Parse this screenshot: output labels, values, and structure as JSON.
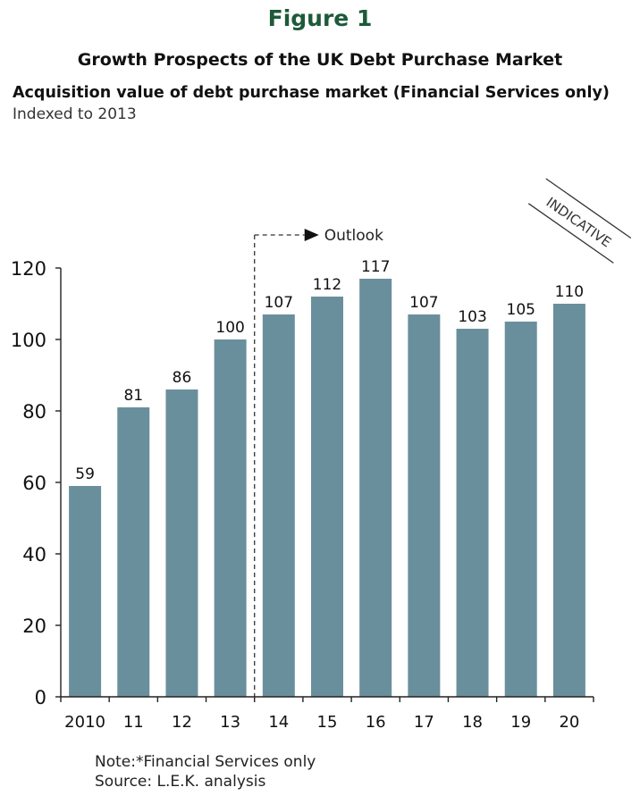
{
  "figure_label": "Figure 1",
  "title": "Growth Prospects of the UK Debt Purchase Market",
  "subtitle": "Acquisition value of debt purchase market (Financial Services only)",
  "subtitle2": "Indexed to 2013",
  "outlook_label": "Outlook",
  "stamp_label": "INDICATIVE",
  "note": "Note:*Financial Services only",
  "source": "Source: L.E.K. analysis",
  "colors": {
    "bar": "#6a8f9c",
    "title": "#1d5a3a",
    "axis": "#222222"
  },
  "chart_data": {
    "type": "bar",
    "categories": [
      "2010",
      "11",
      "12",
      "13",
      "14",
      "15",
      "16",
      "17",
      "18",
      "19",
      "20"
    ],
    "values": [
      59,
      81,
      86,
      100,
      107,
      112,
      117,
      107,
      103,
      105,
      110
    ],
    "y_ticks": [
      "0",
      "20",
      "40",
      "60",
      "80",
      "100",
      "120"
    ],
    "ylim": [
      0,
      120
    ],
    "grid": false,
    "title": "Growth Prospects of the UK Debt Purchase Market",
    "xlabel": "",
    "ylabel": "",
    "outlook_from_category": "14"
  }
}
